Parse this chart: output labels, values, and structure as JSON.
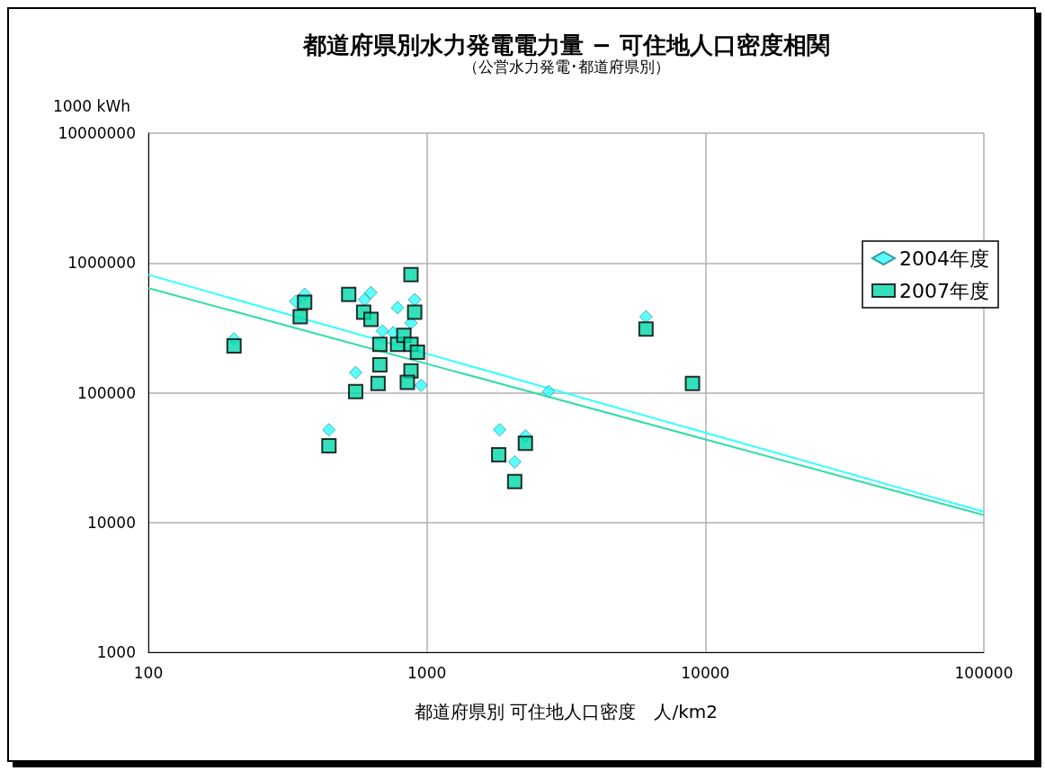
{
  "chart_data": {
    "type": "scatter",
    "title": "都道府県別水力発電電力量 − 可住地人口密度相関",
    "subtitle": "（公営水力発電･都道府県別）",
    "xlabel": "都道府県別 可住地人口密度　人/km2",
    "ylabel": "1000 kWh",
    "log": "xy",
    "xlim": [
      100,
      100000
    ],
    "xticks": [
      100,
      1000,
      10000,
      100000
    ],
    "ylim": [
      1000,
      10000000
    ],
    "yticks": [
      1000,
      10000,
      100000,
      1000000,
      10000000
    ],
    "grid": true,
    "legend": "right",
    "series": [
      {
        "name": "2004年度",
        "marker": "diamond",
        "color": "#33ffff",
        "x": [
          203,
          364,
          338,
          445,
          555,
          597,
          629,
          785,
          904,
          877,
          953,
          693,
          757,
          1825,
          2067,
          2258,
          2735,
          6120
        ],
        "values": [
          260000,
          573000,
          505000,
          51800,
          143000,
          521000,
          590000,
          452000,
          521000,
          345000,
          114000,
          299000,
          290000,
          51800,
          29300,
          46400,
          102000,
          385000
        ]
      },
      {
        "name": "2007年度",
        "marker": "square",
        "color": "#00d8a8",
        "x": [
          203,
          351,
          364,
          445,
          524,
          555,
          593,
          630,
          678,
          678,
          668,
          785,
          827,
          877,
          877,
          851,
          925,
          904,
          877,
          1811,
          2067,
          2258,
          6120,
          8990
        ],
        "values": [
          229000,
          385000,
          497000,
          39000,
          573000,
          102000,
          417000,
          368000,
          236000,
          164000,
          118000,
          236000,
          277000,
          236000,
          147000,
          120000,
          205000,
          417000,
          811000,
          33300,
          20700,
          40800,
          309000,
          118000
        ]
      },
      {
        "type": "line",
        "marker": "none",
        "color": "#33ffff",
        "x": [
          100,
          100000
        ],
        "values": [
          811000,
          12100
        ]
      },
      {
        "type": "line",
        "marker": "none",
        "color": "#33ddaa",
        "x": [
          100,
          100000
        ],
        "values": [
          640000,
          11400
        ]
      }
    ]
  }
}
